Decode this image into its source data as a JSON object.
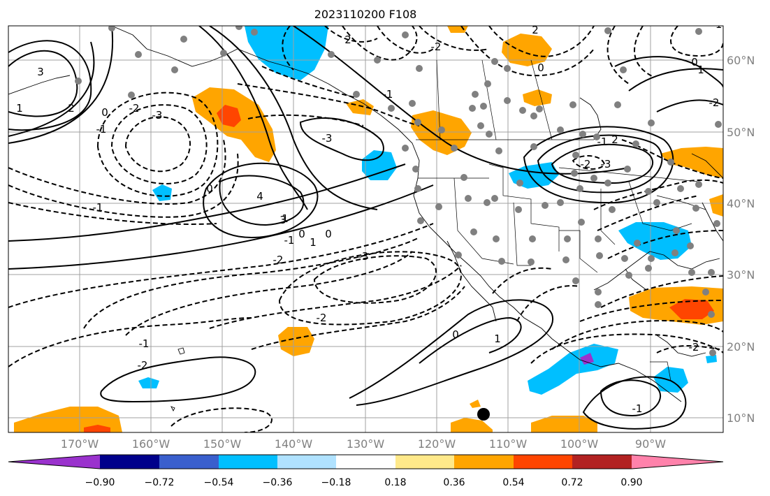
{
  "title": "2023110200 F108",
  "lon_ticks": [
    "170°W",
    "160°W",
    "150°W",
    "140°W",
    "130°W",
    "120°W",
    "110°W",
    "100°W",
    "90°W"
  ],
  "lat_ticks": [
    "60°N",
    "50°N",
    "40°N",
    "30°N",
    "20°N",
    "10°N"
  ],
  "colorbar": {
    "ticks": [
      "−0.90",
      "−0.72",
      "−0.54",
      "−0.36",
      "−0.18",
      "0.18",
      "0.36",
      "0.54",
      "0.72",
      "0.90"
    ],
    "colors": [
      "#9a32cd",
      "#00008b",
      "#3a5fcd",
      "#00bfff",
      "#b0e2ff",
      "#ffffff",
      "#ffe98a",
      "#ffa500",
      "#ff4500",
      "#b22222",
      "#ff82ab"
    ]
  },
  "contour_labels": [
    "3",
    "2",
    "0",
    "1",
    "-1",
    "-2",
    "-3",
    "4",
    "0",
    "-1",
    "0",
    "-2",
    "-3",
    "1",
    "-2",
    "-1",
    "0",
    "1",
    "-1",
    "2",
    "0",
    "-2",
    "-3",
    "3",
    "2",
    "-1",
    "0",
    "1",
    "-2",
    "-3",
    "-2",
    "2",
    "0",
    "1",
    "-2",
    "-1",
    "-1",
    "-2",
    "-1",
    "4",
    "3",
    "0",
    "-1",
    "0",
    "1",
    "-2",
    "-3",
    "-2",
    "-1",
    "0",
    "1",
    "-1",
    "1",
    "-2",
    "0",
    "0",
    "-2",
    "3",
    "2",
    "-2",
    "-1",
    "-2",
    "-2",
    "1",
    "-1"
  ]
}
